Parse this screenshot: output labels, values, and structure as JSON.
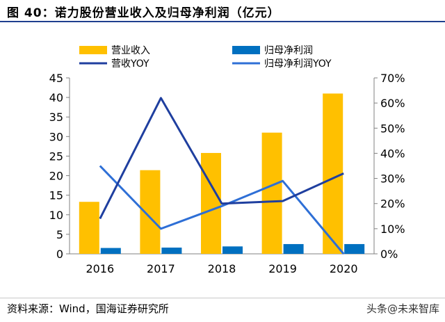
{
  "title": "图 40：诺力股份营业收入及归母净利润（亿元）",
  "source": "资料来源：Wind，国海证券研究所",
  "watermark": "头条@未来智库",
  "colors": {
    "revenue_bar": "#FFC000",
    "profit_bar": "#0070C0",
    "revenue_yoy_line": "#1F3F9F",
    "profit_yoy_line": "#2E6FD6",
    "title_rule": "#1F3F8F"
  },
  "chart_data": {
    "type": "bar",
    "categories": [
      "2016",
      "2017",
      "2018",
      "2019",
      "2020"
    ],
    "series": [
      {
        "name": "营业收入",
        "kind": "bar",
        "axis": "left",
        "values": [
          13.3,
          21.4,
          25.8,
          31.0,
          41.0
        ]
      },
      {
        "name": "归母净利润",
        "kind": "bar",
        "axis": "left",
        "values": [
          1.5,
          1.6,
          1.9,
          2.5,
          2.5
        ]
      },
      {
        "name": "营收YOY",
        "kind": "line",
        "axis": "right",
        "values": [
          14,
          62,
          20,
          21,
          32
        ]
      },
      {
        "name": "归母净利润YOY",
        "kind": "line",
        "axis": "right",
        "values": [
          35,
          10,
          19,
          29,
          0
        ]
      }
    ],
    "ylim": [
      0,
      45
    ],
    "y_ticks": [
      "0",
      "5",
      "10",
      "15",
      "20",
      "25",
      "30",
      "35",
      "40",
      "45"
    ],
    "y2lim": [
      0,
      70
    ],
    "y2_ticks": [
      "0%",
      "10%",
      "20%",
      "30%",
      "40%",
      "50%",
      "60%",
      "70%"
    ],
    "legend_position": "top",
    "grid": false
  }
}
